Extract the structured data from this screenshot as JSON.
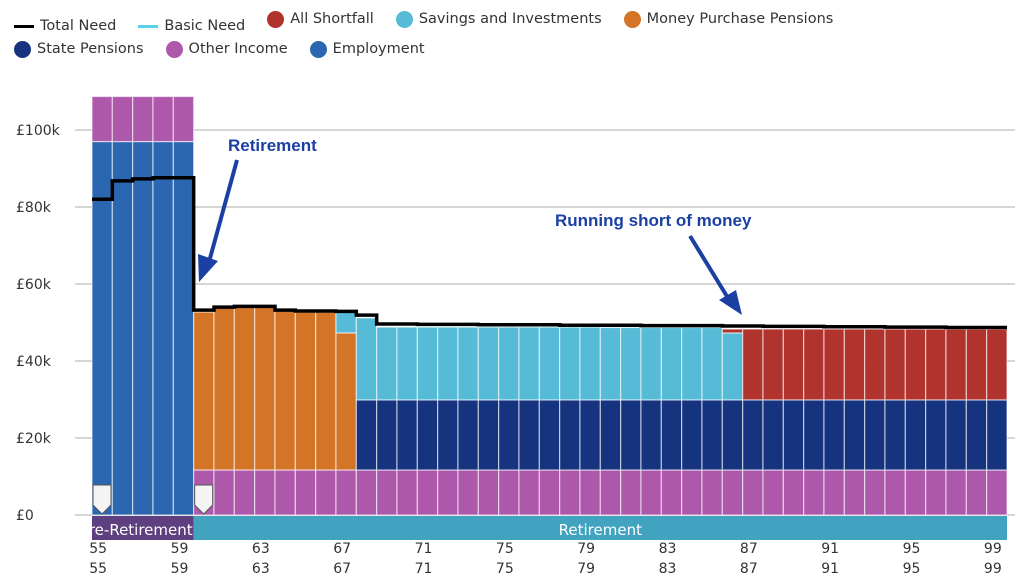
{
  "legend": [
    {
      "label": "Total Need",
      "kind": "line",
      "color": "#000000"
    },
    {
      "label": "Basic Need",
      "kind": "line",
      "color": "#55d3e6"
    },
    {
      "label": "All Shortfall",
      "kind": "dot",
      "color": "#b0332e"
    },
    {
      "label": "Savings and Investments",
      "kind": "dot",
      "color": "#55bbd6"
    },
    {
      "label": "Money Purchase Pensions",
      "kind": "dot",
      "color": "#d37427"
    },
    {
      "label": "State Pensions",
      "kind": "dot",
      "color": "#15337f"
    },
    {
      "label": "Other Income",
      "kind": "dot",
      "color": "#ad58aa"
    },
    {
      "label": "Employment",
      "kind": "dot",
      "color": "#2b66b0"
    }
  ],
  "chart_data": {
    "type": "bar",
    "stacked": true,
    "x": [
      55,
      56,
      57,
      58,
      59,
      60,
      61,
      62,
      63,
      64,
      65,
      66,
      67,
      68,
      69,
      70,
      71,
      72,
      73,
      74,
      75,
      76,
      77,
      78,
      79,
      80,
      81,
      82,
      83,
      84,
      85,
      86,
      87,
      88,
      89,
      90,
      91,
      92,
      93,
      94,
      95,
      96,
      97,
      98,
      99
    ],
    "x_tick_labels": [
      "55",
      "59",
      "63",
      "67",
      "71",
      "75",
      "79",
      "83",
      "87",
      "91",
      "95",
      "99"
    ],
    "y_tick_labels": [
      "£0",
      "£20k",
      "£40k",
      "£60k",
      "£80k",
      "£100k"
    ],
    "ylim": [
      0,
      110
    ],
    "y_unit": "£k",
    "grid": true,
    "legend_position": "top",
    "series": [
      {
        "name": "Employment",
        "color": "#2b66b0",
        "values": [
          97,
          97,
          97,
          97,
          97,
          0,
          0,
          0,
          0,
          0,
          0,
          0,
          0,
          0,
          0,
          0,
          0,
          0,
          0,
          0,
          0,
          0,
          0,
          0,
          0,
          0,
          0,
          0,
          0,
          0,
          0,
          0,
          0,
          0,
          0,
          0,
          0,
          0,
          0,
          0,
          0,
          0,
          0,
          0,
          0
        ]
      },
      {
        "name": "Other Income",
        "color": "#ad58aa",
        "values": [
          11.7,
          11.7,
          11.7,
          11.7,
          11.7,
          11.7,
          11.7,
          11.7,
          11.7,
          11.7,
          11.7,
          11.7,
          11.7,
          11.7,
          11.7,
          11.7,
          11.7,
          11.7,
          11.7,
          11.7,
          11.7,
          11.7,
          11.7,
          11.7,
          11.7,
          11.7,
          11.7,
          11.7,
          11.7,
          11.7,
          11.7,
          11.7,
          11.7,
          11.7,
          11.7,
          11.7,
          11.7,
          11.7,
          11.7,
          11.7,
          11.7,
          11.7,
          11.7,
          11.7,
          11.7
        ]
      },
      {
        "name": "State Pensions",
        "color": "#15337f",
        "values": [
          0,
          0,
          0,
          0,
          0,
          0,
          0,
          0,
          0,
          0,
          0,
          0,
          0,
          18.2,
          18.2,
          18.2,
          18.2,
          18.2,
          18.2,
          18.2,
          18.2,
          18.2,
          18.2,
          18.2,
          18.2,
          18.2,
          18.2,
          18.2,
          18.2,
          18.2,
          18.2,
          18.2,
          18.2,
          18.2,
          18.2,
          18.2,
          18.2,
          18.2,
          18.2,
          18.2,
          18.2,
          18.2,
          18.2,
          18.2,
          18.2
        ]
      },
      {
        "name": "Money Purchase Pensions",
        "color": "#d37427",
        "values": [
          0,
          0,
          0,
          0,
          0,
          41.0,
          42.1,
          42.3,
          42.3,
          41.3,
          41.0,
          41.0,
          35.6,
          0,
          0,
          0,
          0,
          0,
          0,
          0,
          0,
          0,
          0,
          0,
          0,
          0,
          0,
          0,
          0,
          0,
          0,
          0,
          0,
          0,
          0,
          0,
          0,
          0,
          0,
          0,
          0,
          0,
          0,
          0,
          0
        ]
      },
      {
        "name": "Savings and Investments",
        "color": "#55bbd6",
        "values": [
          0,
          0,
          0,
          0,
          0,
          0,
          0,
          0,
          0,
          0,
          0,
          0,
          5.4,
          21.3,
          18.9,
          18.9,
          18.9,
          18.9,
          18.9,
          18.9,
          18.9,
          18.9,
          18.9,
          18.9,
          18.9,
          18.8,
          18.8,
          18.8,
          18.8,
          18.8,
          18.8,
          17.4,
          0,
          0,
          0,
          0,
          0,
          0,
          0,
          0,
          0,
          0,
          0,
          0,
          0
        ]
      },
      {
        "name": "All Shortfall",
        "color": "#b0332e",
        "values": [
          0,
          0,
          0,
          0,
          0,
          0,
          0,
          0,
          0,
          0,
          0,
          0,
          0,
          0,
          0,
          0,
          0,
          0,
          0,
          0,
          0,
          0,
          0,
          0,
          0,
          0,
          0,
          0,
          0,
          0,
          0,
          1.0,
          18.4,
          18.4,
          18.4,
          18.4,
          18.4,
          18.4,
          18.4,
          18.4,
          18.4,
          18.4,
          18.4,
          18.4,
          18.4
        ]
      }
    ],
    "total_need": {
      "name": "Total Need",
      "color": "#000000",
      "values": [
        82,
        86.8,
        87.3,
        87.6,
        87.6,
        53.2,
        54.0,
        54.2,
        54.2,
        53.2,
        53.0,
        53.0,
        52.9,
        51.9,
        49.6,
        49.6,
        49.5,
        49.5,
        49.5,
        49.4,
        49.4,
        49.4,
        49.4,
        49.3,
        49.3,
        49.3,
        49.3,
        49.2,
        49.2,
        49.2,
        49.2,
        49.1,
        49.1,
        49.0,
        49.0,
        49.0,
        48.9,
        48.9,
        48.9,
        48.8,
        48.8,
        48.8,
        48.7,
        48.7,
        48.7
      ]
    },
    "phases": [
      {
        "label": "Pre-Retirement",
        "from": 55,
        "to": 59,
        "color": "#5e3f7f"
      },
      {
        "label": "Retirement",
        "from": 60,
        "to": 99,
        "color": "#42a3c0"
      }
    ],
    "milestone_markers": [
      55,
      60
    ],
    "annotations": [
      {
        "text": "Retirement",
        "points_to_age": 60
      },
      {
        "text": "Running short of money",
        "points_to_age": 87
      }
    ]
  }
}
